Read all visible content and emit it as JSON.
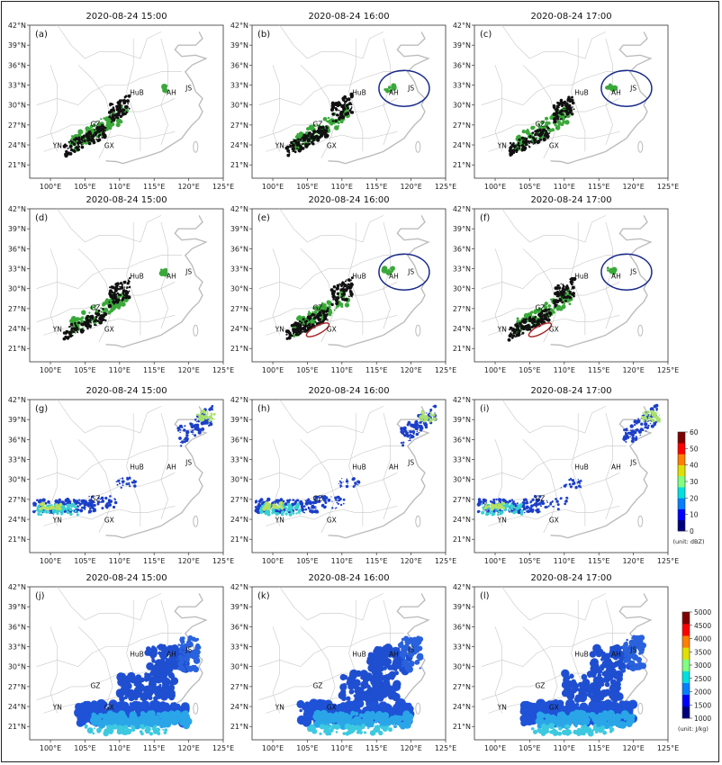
{
  "figure": {
    "timestamps": [
      "2020-08-24 15:00",
      "2020-08-24 16:00",
      "2020-08-24 17:00"
    ],
    "x_ticks": [
      "100°E",
      "105°E",
      "110°E",
      "115°E",
      "120°E",
      "125°E"
    ],
    "y_ticks": [
      "42°N",
      "39°N",
      "36°N",
      "33°N",
      "30°N",
      "27°N",
      "24°N",
      "21°N"
    ],
    "panel_labels": [
      "(a)",
      "(b)",
      "(c)",
      "(d)",
      "(e)",
      "(f)",
      "(g)",
      "(h)",
      "(i)",
      "(j)",
      "(k)",
      "(l)"
    ],
    "province_labels": [
      "HuB",
      "AH",
      "JS",
      "GZ",
      "YN",
      "GX"
    ]
  },
  "colorbars": [
    {
      "ticks": [
        "60",
        "50",
        "40",
        "30",
        "20",
        "10",
        "0"
      ],
      "unit": "(unit: dBZ)",
      "colors": [
        "#00007f",
        "#0000ff",
        "#0080ff",
        "#00e0e0",
        "#80ff80",
        "#e0e000",
        "#ff8000",
        "#ff0000",
        "#800000"
      ]
    },
    {
      "ticks": [
        "5000",
        "4500",
        "4000",
        "3500",
        "3000",
        "2500",
        "2000",
        "1500",
        "1000"
      ],
      "unit": "(unit: J/kg)",
      "colors": [
        "#00007f",
        "#0000ff",
        "#0080ff",
        "#00e0e0",
        "#80ff80",
        "#e0e000",
        "#ff8000",
        "#ff0000",
        "#800000"
      ]
    }
  ],
  "chart_data": [
    {
      "type": "heatmap",
      "title": "2020-08-24 15:00",
      "panel": "(a)",
      "xlim": [
        97,
        125
      ],
      "ylim": [
        19,
        42
      ]
    },
    {
      "type": "heatmap",
      "title": "2020-08-24 16:00",
      "panel": "(b)",
      "xlim": [
        97,
        125
      ],
      "ylim": [
        19,
        42
      ]
    },
    {
      "type": "heatmap",
      "title": "2020-08-24 17:00",
      "panel": "(c)",
      "xlim": [
        97,
        125
      ],
      "ylim": [
        19,
        42
      ]
    },
    {
      "type": "heatmap",
      "title": "2020-08-24 15:00",
      "panel": "(d)",
      "xlim": [
        97,
        125
      ],
      "ylim": [
        19,
        42
      ]
    },
    {
      "type": "heatmap",
      "title": "2020-08-24 16:00",
      "panel": "(e)",
      "xlim": [
        97,
        125
      ],
      "ylim": [
        19,
        42
      ]
    },
    {
      "type": "heatmap",
      "title": "2020-08-24 17:00",
      "panel": "(f)",
      "xlim": [
        97,
        125
      ],
      "ylim": [
        19,
        42
      ]
    },
    {
      "type": "heatmap",
      "title": "2020-08-24 15:00",
      "panel": "(g)",
      "xlim": [
        97,
        125
      ],
      "ylim": [
        19,
        42
      ],
      "colorbar_range": [
        0,
        60
      ]
    },
    {
      "type": "heatmap",
      "title": "2020-08-24 16:00",
      "panel": "(h)",
      "xlim": [
        97,
        125
      ],
      "ylim": [
        19,
        42
      ],
      "colorbar_range": [
        0,
        60
      ]
    },
    {
      "type": "heatmap",
      "title": "2020-08-24 17:00",
      "panel": "(i)",
      "xlim": [
        97,
        125
      ],
      "ylim": [
        19,
        42
      ],
      "colorbar_range": [
        0,
        60
      ]
    },
    {
      "type": "heatmap",
      "title": "2020-08-24 15:00",
      "panel": "(j)",
      "xlim": [
        97,
        125
      ],
      "ylim": [
        19,
        42
      ],
      "colorbar_range": [
        1000,
        5000
      ]
    },
    {
      "type": "heatmap",
      "title": "2020-08-24 16:00",
      "panel": "(k)",
      "xlim": [
        97,
        125
      ],
      "ylim": [
        19,
        42
      ],
      "colorbar_range": [
        1000,
        5000
      ]
    },
    {
      "type": "heatmap",
      "title": "2020-08-24 17:00",
      "panel": "(l)",
      "xlim": [
        97,
        125
      ],
      "ylim": [
        19,
        42
      ],
      "colorbar_range": [
        1000,
        5000
      ]
    }
  ]
}
